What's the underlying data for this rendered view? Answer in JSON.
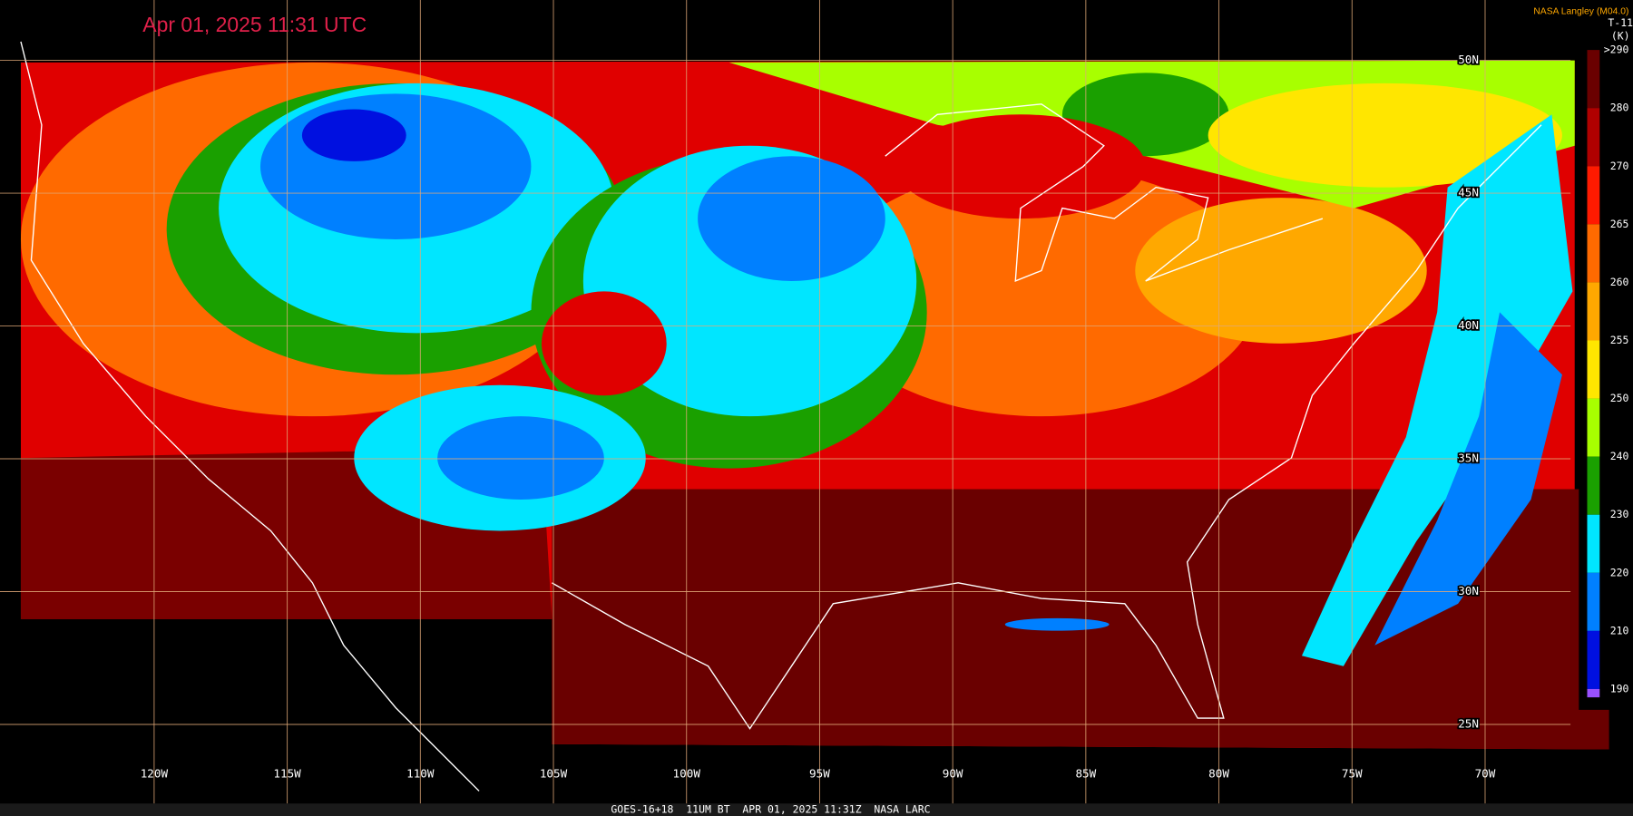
{
  "title": "Apr 01, 2025 11:31 UTC",
  "credit": "NASA Langley (M04.0)",
  "footer": "GOES-16+18  11UM BT  APR 01, 2025 11:31Z  NASA LARC",
  "longitudes": [
    "120W",
    "115W",
    "110W",
    "105W",
    "100W",
    "95W",
    "90W",
    "85W",
    "80W",
    "75W",
    "70W"
  ],
  "latitudes": [
    "50N",
    "45N",
    "40N",
    "35N",
    "30N",
    "25N"
  ],
  "colorbar": {
    "title": "T-11",
    "unit": "(K)",
    "labels": [
      ">290",
      "280",
      "270",
      "265",
      "260",
      "255",
      "250",
      "240",
      "230",
      "220",
      "210",
      "190"
    ],
    "colors": [
      "#6a0000",
      "#b00000",
      "#ff1a00",
      "#ff6a00",
      "#ffa800",
      "#ffe600",
      "#a8ff00",
      "#1aa000",
      "#00e6ff",
      "#0080ff",
      "#0010e0",
      "#9a50ff"
    ]
  }
}
